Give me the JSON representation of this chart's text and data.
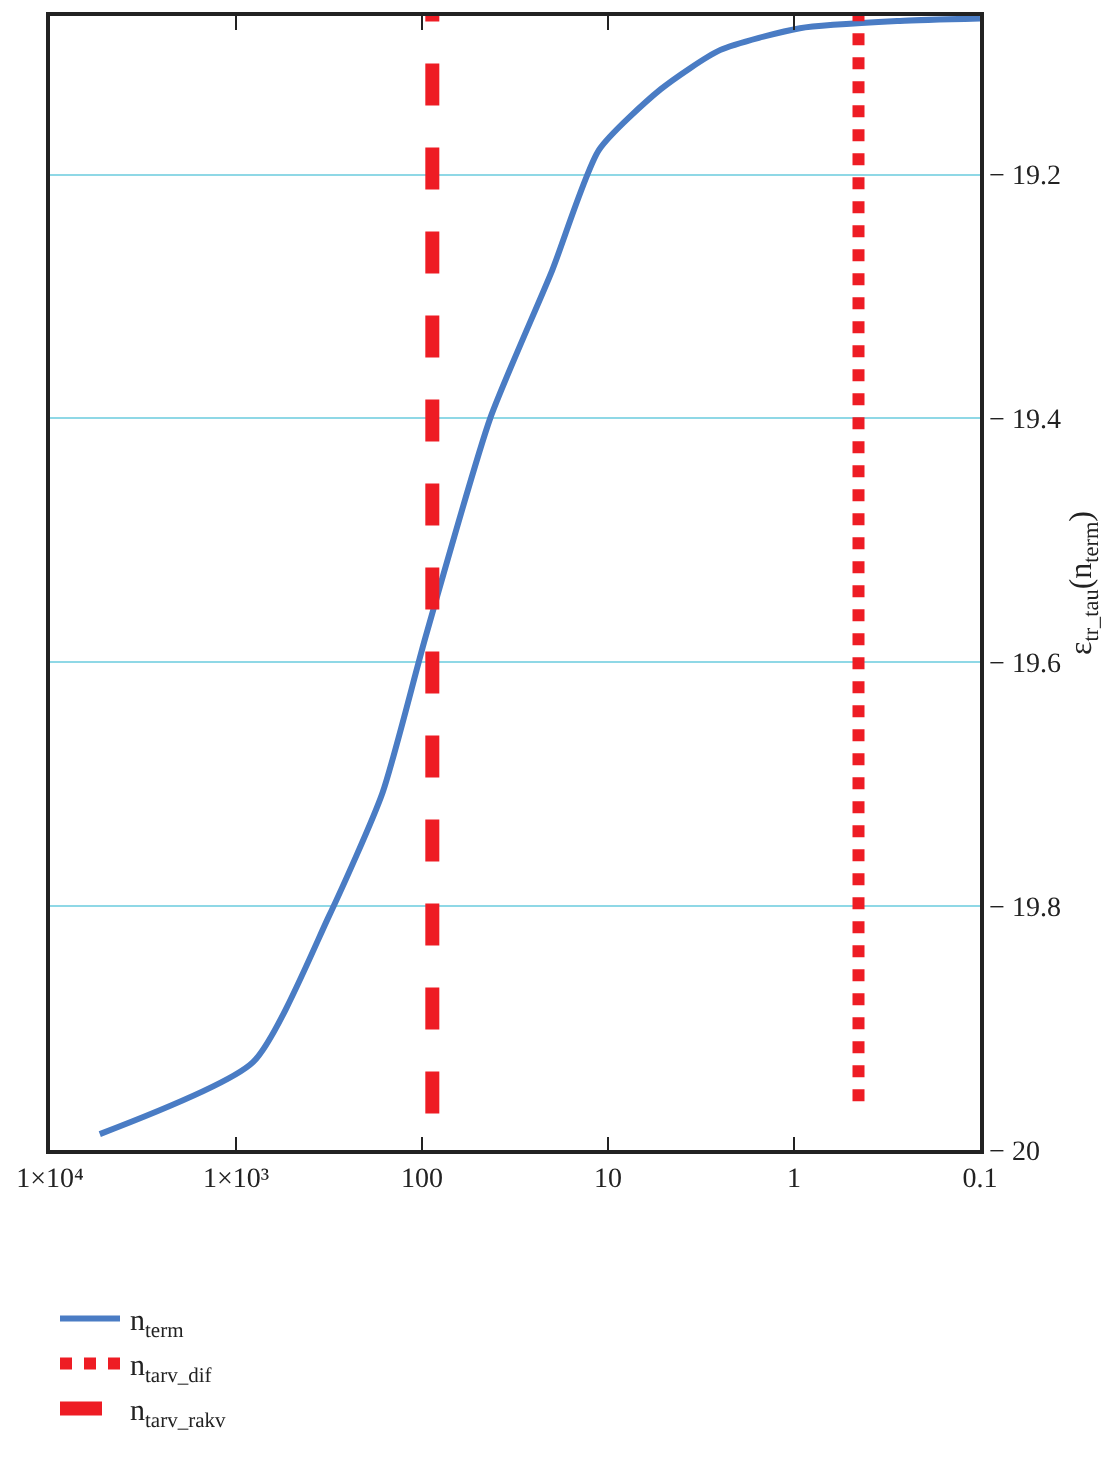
{
  "chart_data": {
    "type": "line",
    "ylabel": "ε$_{tr_tau}$(n$_{term}$)",
    "log": "x",
    "xlim": [
      10000,
      0.1
    ],
    "xticks": [
      {
        "value": 10000,
        "label": "1×10⁴"
      },
      {
        "value": 1000,
        "label": "1×10³"
      },
      100,
      10,
      1,
      0.1
    ],
    "ylim": [
      -20,
      -19.07
    ],
    "yticks": [
      {
        "value": -20,
        "label": "− 20"
      },
      {
        "value": -19.8,
        "label": "− 19.8"
      },
      {
        "value": -19.6,
        "label": "− 19.6"
      },
      {
        "value": -19.4,
        "label": "− 19.4"
      },
      {
        "value": -19.2,
        "label": "− 19.2"
      }
    ],
    "grid": "y",
    "legend": "bottom left",
    "marker": "none",
    "series": [
      {
        "name": "n$_{term}$",
        "color": "#4a7cc4",
        "line_style": "solid",
        "x": [
          5400,
          810,
          316,
          163,
          96,
          43,
          20,
          11.2,
          5.2,
          2.5,
          0.93,
          0.27,
          0.1
        ],
        "values": [
          -19.987,
          -19.928,
          -19.808,
          -19.707,
          -19.58,
          -19.4,
          -19.279,
          -19.18,
          -19.13,
          -19.098,
          -19.08,
          -19.074,
          -19.072
        ]
      },
      {
        "name": "n$_{tarv_dif}$",
        "color": "#ee1c24",
        "line_style": "dotted",
        "x": [
          0.45,
          0.45
        ],
        "values": [
          -19.96,
          -19.07
        ]
      },
      {
        "name": "n$_{tarv_rakv}$",
        "color": "#ee1c24",
        "line_style": "dashed",
        "x": [
          88,
          88
        ],
        "values": [
          -19.97,
          -19.07
        ]
      }
    ]
  }
}
